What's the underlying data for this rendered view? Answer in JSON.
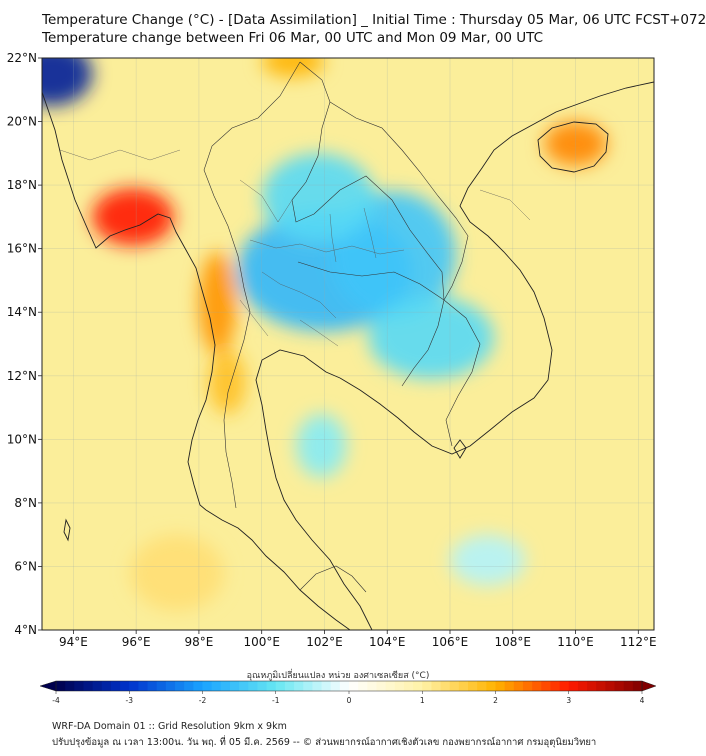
{
  "title_line1": "Temperature Change (°C) - [Data Assimilation] _ Initial Time : Thursday 05 Mar, 06 UTC FCST+072",
  "title_line2": "Temperature change between Fri 06 Mar, 00 UTC and Mon 09 Mar, 00 UTC",
  "map": {
    "lon_range": [
      93,
      112.5
    ],
    "lat_range": [
      4,
      22
    ],
    "lat_ticks": [
      {
        "value": 22,
        "label": "22°N"
      },
      {
        "value": 20,
        "label": "20°N"
      },
      {
        "value": 18,
        "label": "18°N"
      },
      {
        "value": 16,
        "label": "16°N"
      },
      {
        "value": 14,
        "label": "14°N"
      },
      {
        "value": 12,
        "label": "12°N"
      },
      {
        "value": 10,
        "label": "10°N"
      },
      {
        "value": 8,
        "label": "8°N"
      },
      {
        "value": 6,
        "label": "6°N"
      },
      {
        "value": 4,
        "label": "4°N"
      }
    ],
    "lon_ticks": [
      {
        "value": 94,
        "label": "94°E"
      },
      {
        "value": 96,
        "label": "96°E"
      },
      {
        "value": 98,
        "label": "98°E"
      },
      {
        "value": 100,
        "label": "100°E"
      },
      {
        "value": 102,
        "label": "102°E"
      },
      {
        "value": 104,
        "label": "104°E"
      },
      {
        "value": 106,
        "label": "106°E"
      },
      {
        "value": 108,
        "label": "108°E"
      },
      {
        "value": 110,
        "label": "110°E"
      },
      {
        "value": 112,
        "label": "112°E"
      }
    ],
    "background_color": "#fbee9a",
    "anomalies": [
      {
        "name": "cool-thailand-central",
        "lon": 102.0,
        "lat": 15.3,
        "rx": 2.8,
        "ry": 1.9,
        "value": -1.7
      },
      {
        "name": "cool-thailand-northeast",
        "lon": 104.2,
        "lat": 15.8,
        "rx": 2.0,
        "ry": 2.0,
        "value": -1.5
      },
      {
        "name": "cool-thailand-north",
        "lon": 101.8,
        "lat": 17.6,
        "rx": 1.8,
        "ry": 1.4,
        "value": -1.2
      },
      {
        "name": "cool-cambodia",
        "lon": 105.4,
        "lat": 13.2,
        "rx": 2.0,
        "ry": 1.3,
        "value": -1.2
      },
      {
        "name": "cool-gulf-thailand",
        "lon": 101.9,
        "lat": 9.8,
        "rx": 0.8,
        "ry": 1.0,
        "value": -0.8
      },
      {
        "name": "cool-south-china-sea",
        "lon": 107.2,
        "lat": 6.2,
        "rx": 1.2,
        "ry": 0.8,
        "value": -0.5
      },
      {
        "name": "cool-nw-corner",
        "lon": 93.3,
        "lat": 21.5,
        "rx": 1.3,
        "ry": 1.0,
        "value": -3.4
      },
      {
        "name": "warm-myanmar-coast",
        "lon": 95.9,
        "lat": 17.0,
        "rx": 1.3,
        "ry": 0.9,
        "value": 3.0
      },
      {
        "name": "warm-tenasserim",
        "lon": 98.6,
        "lat": 14.3,
        "rx": 0.6,
        "ry": 1.6,
        "value": 2.2
      },
      {
        "name": "warm-myanmar-south",
        "lon": 98.9,
        "lat": 11.8,
        "rx": 0.6,
        "ry": 1.0,
        "value": 1.8
      },
      {
        "name": "warm-hainan",
        "lon": 110.0,
        "lat": 19.3,
        "rx": 1.0,
        "ry": 0.7,
        "value": 2.3
      },
      {
        "name": "warm-top-border",
        "lon": 101.0,
        "lat": 21.9,
        "rx": 1.0,
        "ry": 0.5,
        "value": 2.0
      },
      {
        "name": "warm-andaman-south",
        "lon": 97.3,
        "lat": 5.8,
        "rx": 1.5,
        "ry": 1.2,
        "value": 1.3
      }
    ]
  },
  "colorbar": {
    "title": "อุณหภูมิเปลี่ยนแปลง หน่วย องศาเซลเซียส (°C)",
    "min": -4,
    "max": 4,
    "ticks": [
      {
        "value": -4,
        "label": "-4"
      },
      {
        "value": -3,
        "label": "-3"
      },
      {
        "value": -2,
        "label": "-2"
      },
      {
        "value": -1,
        "label": "-1"
      },
      {
        "value": 0,
        "label": "0"
      },
      {
        "value": 1,
        "label": "1"
      },
      {
        "value": 2,
        "label": "2"
      },
      {
        "value": 3,
        "label": "3"
      },
      {
        "value": 4,
        "label": "4"
      }
    ],
    "color_stops": [
      {
        "value": -4,
        "color": "#00004d"
      },
      {
        "value": -3,
        "color": "#0033cc"
      },
      {
        "value": -2,
        "color": "#1aa3ff"
      },
      {
        "value": -1,
        "color": "#66e6f2"
      },
      {
        "value": 0,
        "color": "#ffffff"
      },
      {
        "value": 1,
        "color": "#fff2a6"
      },
      {
        "value": 2,
        "color": "#ffb300"
      },
      {
        "value": 3,
        "color": "#ff1a00"
      },
      {
        "value": 4,
        "color": "#800000"
      }
    ]
  },
  "footer_line1": "WRF-DA Domain 01 :: Grid Resolution 9km x 9km",
  "footer_line2": "ปรับปรุงข้อมูล ณ เวลา 13:00น. วัน พฤ. ที่ 05 มี.ค. 2569 -- © ส่วนพยากรณ์อากาศเชิงตัวเลข กองพยากรณ์อากาศ กรมอุตุนิยมวิทยา"
}
